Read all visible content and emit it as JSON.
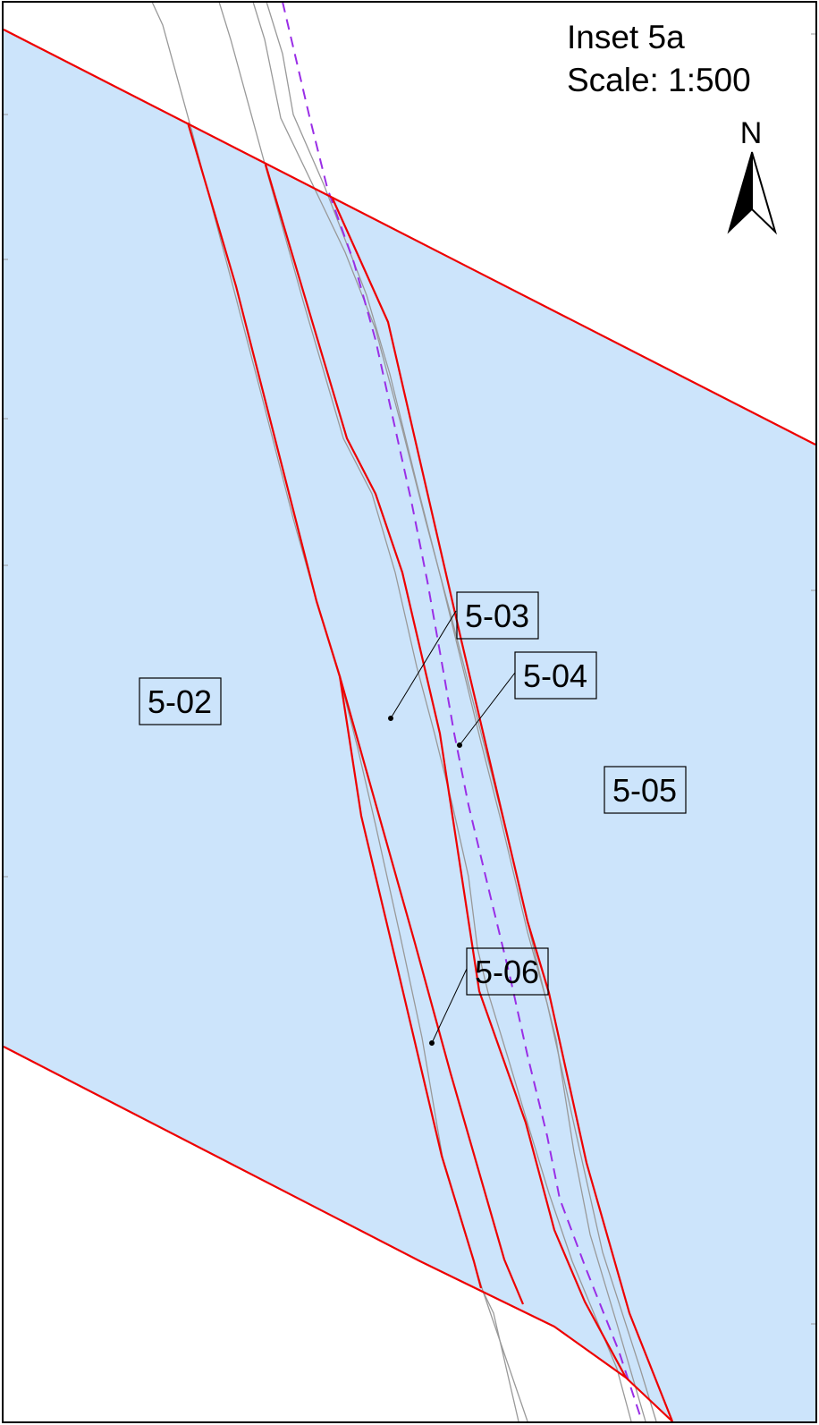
{
  "inset": {
    "title": "Inset 5a",
    "scale": "Scale: 1:500"
  },
  "north_arrow": {
    "letter": "N",
    "icon": "north-arrow-icon"
  },
  "parcels": [
    {
      "id": "5-02",
      "label": "5-02"
    },
    {
      "id": "5-03",
      "label": "5-03"
    },
    {
      "id": "5-04",
      "label": "5-04"
    },
    {
      "id": "5-05",
      "label": "5-05"
    },
    {
      "id": "5-06",
      "label": "5-06"
    }
  ],
  "colors": {
    "parcel_fill": "#cce4fb",
    "parcel_boundary": "#ee0000",
    "road_lines": "#999999",
    "dashed_line": "#9a2ee6",
    "frame": "#000000"
  }
}
